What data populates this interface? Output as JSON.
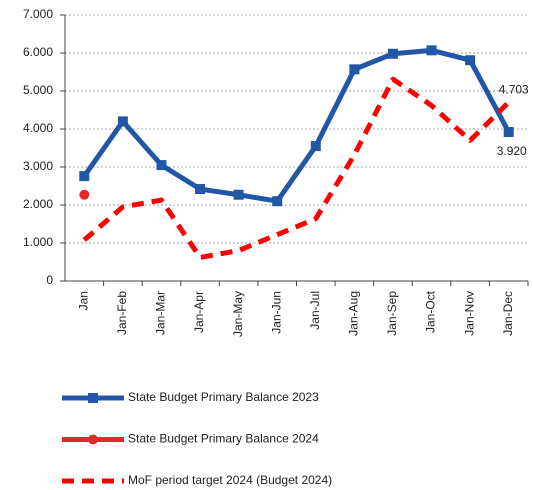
{
  "chart_data": {
    "type": "line",
    "categories": [
      "Jan",
      "Jan-Feb",
      "Jan-Mar",
      "Jan-Apr",
      "Jan-May",
      "Jan-Jun",
      "Jan-Jul",
      "Jan-Aug",
      "Jan-Sep",
      "Jan-Oct",
      "Jan-Nov",
      "Jan-Dec"
    ],
    "ylim": [
      0,
      7000
    ],
    "yticks": [
      0,
      {
        "value": 1000,
        "label": "1.000"
      },
      {
        "value": 2000,
        "label": "2.000"
      },
      {
        "value": 3000,
        "label": "3.000"
      },
      {
        "value": 4000,
        "label": "4.000"
      },
      {
        "value": 5000,
        "label": "5.000"
      },
      {
        "value": 6000,
        "label": "6.000"
      },
      {
        "value": 7000,
        "label": "7.000"
      }
    ],
    "grid": true,
    "series": [
      {
        "name": "State Budget Primary Balance 2023",
        "color": "#2157a6",
        "marker": "square",
        "dashed": false,
        "values": [
          2760,
          4200,
          3050,
          2420,
          2270,
          2100,
          3550,
          5570,
          5980,
          6070,
          5810,
          3920
        ],
        "value_labels": [
          null,
          null,
          null,
          null,
          null,
          null,
          null,
          null,
          null,
          null,
          null,
          "3.920"
        ]
      },
      {
        "name": "State Budget Primary Balance 2024",
        "color": "#e8262a",
        "marker": "circle",
        "dashed": false,
        "values": [
          2270,
          null,
          null,
          null,
          null,
          null,
          null,
          null,
          null,
          null,
          null,
          null
        ]
      },
      {
        "name": "MoF period target 2024 (Budget 2024)",
        "color": "#ff0000",
        "marker": null,
        "dashed": true,
        "values": [
          1080,
          1950,
          2130,
          620,
          800,
          1220,
          1640,
          3320,
          5310,
          4620,
          3700,
          4703
        ],
        "value_labels": [
          null,
          null,
          null,
          null,
          null,
          null,
          null,
          null,
          null,
          null,
          null,
          "4.703"
        ]
      }
    ]
  }
}
